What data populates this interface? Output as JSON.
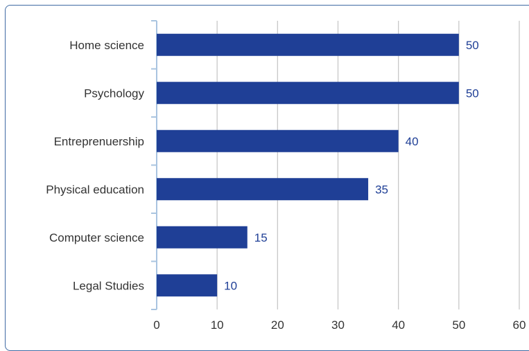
{
  "chart_data": {
    "type": "bar",
    "orientation": "horizontal",
    "categories": [
      "Home science",
      "Psychology",
      "Entreprenuership",
      "Physical education",
      "Computer science",
      "Legal Studies"
    ],
    "values": [
      50,
      50,
      40,
      35,
      15,
      10
    ],
    "data_labels": [
      "50",
      "50",
      "40",
      "35",
      "15",
      "10"
    ],
    "title": "",
    "xlabel": "",
    "ylabel": "",
    "xlim": [
      0,
      60
    ],
    "x_ticks": [
      0,
      10,
      20,
      30,
      40,
      50,
      60
    ],
    "x_tick_labels": [
      "0",
      "10",
      "20",
      "30",
      "40",
      "50",
      "60"
    ],
    "grid": true,
    "legend": "none"
  },
  "colors": {
    "bar": "#1f3f96",
    "data_label": "#1f3f96",
    "grid": "#c8c8c8",
    "axis": "#a9c4e0",
    "frame": "#3f6aa3"
  }
}
